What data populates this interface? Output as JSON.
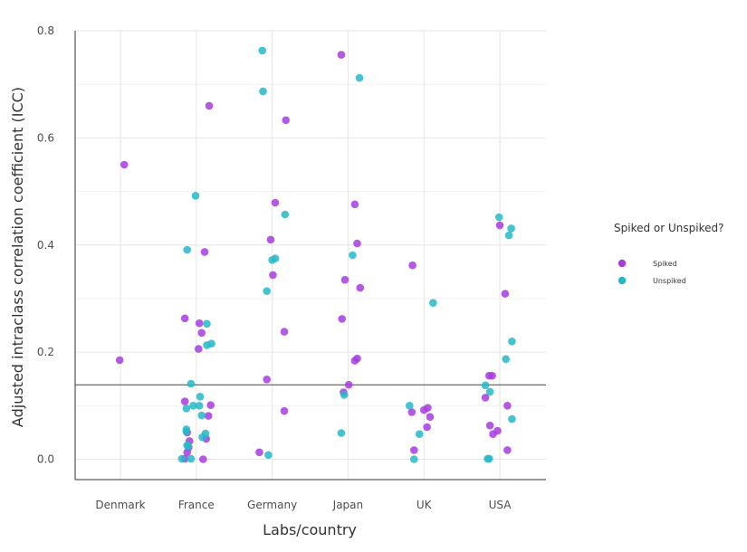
{
  "chart_data": {
    "type": "scatter",
    "title": "",
    "xlabel": "Labs/country",
    "ylabel": "Adjusted intraclass correlation coefficient (ICC)",
    "categories": [
      "Denmark",
      "France",
      "Germany",
      "Japan",
      "UK",
      "USA"
    ],
    "yticks": [
      "0.0",
      "0.2",
      "0.4",
      "0.6",
      "0.8"
    ],
    "ylim": [
      -0.038,
      0.8
    ],
    "grid": true,
    "reference_line": 0.139,
    "legend": {
      "title": "Spiked or Unspiked?",
      "position": "right",
      "entries": [
        "Spiked",
        "Unspiked"
      ]
    },
    "series": [
      {
        "name": "Spiked",
        "color": "#a63ce0",
        "points": [
          {
            "x": "Denmark",
            "jitter": -0.01,
            "y": 0.185
          },
          {
            "x": "Denmark",
            "jitter": 0.05,
            "y": 0.55
          },
          {
            "x": "France",
            "jitter": 0.17,
            "y": 0.66
          },
          {
            "x": "France",
            "jitter": 0.11,
            "y": 0.387
          },
          {
            "x": "France",
            "jitter": -0.15,
            "y": 0.263
          },
          {
            "x": "France",
            "jitter": 0.04,
            "y": 0.254
          },
          {
            "x": "France",
            "jitter": 0.07,
            "y": 0.236
          },
          {
            "x": "France",
            "jitter": 0.03,
            "y": 0.206
          },
          {
            "x": "France",
            "jitter": -0.15,
            "y": 0.108
          },
          {
            "x": "France",
            "jitter": 0.19,
            "y": 0.101
          },
          {
            "x": "France",
            "jitter": 0.16,
            "y": 0.081
          },
          {
            "x": "France",
            "jitter": -0.12,
            "y": 0.05
          },
          {
            "x": "France",
            "jitter": 0.13,
            "y": 0.038
          },
          {
            "x": "France",
            "jitter": -0.09,
            "y": 0.034
          },
          {
            "x": "France",
            "jitter": -0.1,
            "y": 0.022
          },
          {
            "x": "France",
            "jitter": -0.12,
            "y": 0.013
          },
          {
            "x": "France",
            "jitter": -0.15,
            "y": 0.001
          },
          {
            "x": "France",
            "jitter": 0.09,
            "y": 0.0
          },
          {
            "x": "Germany",
            "jitter": 0.18,
            "y": 0.633
          },
          {
            "x": "Germany",
            "jitter": 0.04,
            "y": 0.479
          },
          {
            "x": "Germany",
            "jitter": -0.02,
            "y": 0.41
          },
          {
            "x": "Germany",
            "jitter": 0.01,
            "y": 0.344
          },
          {
            "x": "Germany",
            "jitter": 0.16,
            "y": 0.238
          },
          {
            "x": "Germany",
            "jitter": -0.07,
            "y": 0.149
          },
          {
            "x": "Germany",
            "jitter": 0.16,
            "y": 0.09
          },
          {
            "x": "Germany",
            "jitter": -0.17,
            "y": 0.013
          },
          {
            "x": "Japan",
            "jitter": -0.09,
            "y": 0.755
          },
          {
            "x": "Japan",
            "jitter": 0.09,
            "y": 0.476
          },
          {
            "x": "Japan",
            "jitter": 0.12,
            "y": 0.403
          },
          {
            "x": "Japan",
            "jitter": -0.04,
            "y": 0.335
          },
          {
            "x": "Japan",
            "jitter": 0.16,
            "y": 0.32
          },
          {
            "x": "Japan",
            "jitter": -0.08,
            "y": 0.262
          },
          {
            "x": "Japan",
            "jitter": 0.12,
            "y": 0.188
          },
          {
            "x": "Japan",
            "jitter": 0.09,
            "y": 0.184
          },
          {
            "x": "Japan",
            "jitter": 0.01,
            "y": 0.139
          },
          {
            "x": "Japan",
            "jitter": -0.06,
            "y": 0.125
          },
          {
            "x": "UK",
            "jitter": -0.15,
            "y": 0.362
          },
          {
            "x": "UK",
            "jitter": 0.05,
            "y": 0.096
          },
          {
            "x": "UK",
            "jitter": 0.0,
            "y": 0.092
          },
          {
            "x": "UK",
            "jitter": -0.16,
            "y": 0.088
          },
          {
            "x": "UK",
            "jitter": 0.08,
            "y": 0.079
          },
          {
            "x": "UK",
            "jitter": 0.04,
            "y": 0.06
          },
          {
            "x": "UK",
            "jitter": -0.13,
            "y": 0.017
          },
          {
            "x": "USA",
            "jitter": 0.0,
            "y": 0.437
          },
          {
            "x": "USA",
            "jitter": 0.07,
            "y": 0.309
          },
          {
            "x": "USA",
            "jitter": -0.14,
            "y": 0.156
          },
          {
            "x": "USA",
            "jitter": -0.1,
            "y": 0.156
          },
          {
            "x": "USA",
            "jitter": -0.19,
            "y": 0.115
          },
          {
            "x": "USA",
            "jitter": 0.1,
            "y": 0.1
          },
          {
            "x": "USA",
            "jitter": -0.13,
            "y": 0.063
          },
          {
            "x": "USA",
            "jitter": -0.03,
            "y": 0.053
          },
          {
            "x": "USA",
            "jitter": -0.09,
            "y": 0.047
          },
          {
            "x": "USA",
            "jitter": 0.1,
            "y": 0.017
          }
        ]
      },
      {
        "name": "Unspiked",
        "color": "#26b8c8",
        "points": [
          {
            "x": "France",
            "jitter": -0.01,
            "y": 0.492
          },
          {
            "x": "France",
            "jitter": -0.12,
            "y": 0.391
          },
          {
            "x": "France",
            "jitter": 0.14,
            "y": 0.253
          },
          {
            "x": "France",
            "jitter": 0.2,
            "y": 0.216
          },
          {
            "x": "France",
            "jitter": 0.14,
            "y": 0.213
          },
          {
            "x": "France",
            "jitter": -0.07,
            "y": 0.141
          },
          {
            "x": "France",
            "jitter": 0.05,
            "y": 0.117
          },
          {
            "x": "France",
            "jitter": -0.04,
            "y": 0.1
          },
          {
            "x": "France",
            "jitter": 0.04,
            "y": 0.1
          },
          {
            "x": "France",
            "jitter": -0.13,
            "y": 0.095
          },
          {
            "x": "France",
            "jitter": 0.07,
            "y": 0.082
          },
          {
            "x": "France",
            "jitter": -0.13,
            "y": 0.056
          },
          {
            "x": "France",
            "jitter": -0.13,
            "y": 0.052
          },
          {
            "x": "France",
            "jitter": 0.12,
            "y": 0.048
          },
          {
            "x": "France",
            "jitter": 0.08,
            "y": 0.041
          },
          {
            "x": "France",
            "jitter": -0.12,
            "y": 0.026
          },
          {
            "x": "France",
            "jitter": -0.11,
            "y": 0.024
          },
          {
            "x": "France",
            "jitter": -0.19,
            "y": 0.001
          },
          {
            "x": "France",
            "jitter": -0.07,
            "y": 0.001
          },
          {
            "x": "Germany",
            "jitter": -0.13,
            "y": 0.763
          },
          {
            "x": "Germany",
            "jitter": -0.12,
            "y": 0.687
          },
          {
            "x": "Germany",
            "jitter": 0.17,
            "y": 0.457
          },
          {
            "x": "Germany",
            "jitter": 0.04,
            "y": 0.375
          },
          {
            "x": "Germany",
            "jitter": 0.0,
            "y": 0.372
          },
          {
            "x": "Germany",
            "jitter": -0.07,
            "y": 0.314
          },
          {
            "x": "Germany",
            "jitter": -0.05,
            "y": 0.008
          },
          {
            "x": "Japan",
            "jitter": 0.15,
            "y": 0.712
          },
          {
            "x": "Japan",
            "jitter": 0.06,
            "y": 0.381
          },
          {
            "x": "Japan",
            "jitter": -0.05,
            "y": 0.12
          },
          {
            "x": "Japan",
            "jitter": -0.09,
            "y": 0.049
          },
          {
            "x": "UK",
            "jitter": 0.12,
            "y": 0.292
          },
          {
            "x": "UK",
            "jitter": -0.19,
            "y": 0.1
          },
          {
            "x": "UK",
            "jitter": -0.06,
            "y": 0.047
          },
          {
            "x": "UK",
            "jitter": -0.13,
            "y": 0.0
          },
          {
            "x": "USA",
            "jitter": -0.01,
            "y": 0.452
          },
          {
            "x": "USA",
            "jitter": 0.15,
            "y": 0.431
          },
          {
            "x": "USA",
            "jitter": 0.12,
            "y": 0.418
          },
          {
            "x": "USA",
            "jitter": 0.16,
            "y": 0.22
          },
          {
            "x": "USA",
            "jitter": 0.08,
            "y": 0.187
          },
          {
            "x": "USA",
            "jitter": -0.19,
            "y": 0.138
          },
          {
            "x": "USA",
            "jitter": -0.13,
            "y": 0.126
          },
          {
            "x": "USA",
            "jitter": 0.16,
            "y": 0.075
          },
          {
            "x": "USA",
            "jitter": -0.16,
            "y": 0.001
          },
          {
            "x": "USA",
            "jitter": -0.14,
            "y": 0.001
          }
        ]
      }
    ]
  }
}
